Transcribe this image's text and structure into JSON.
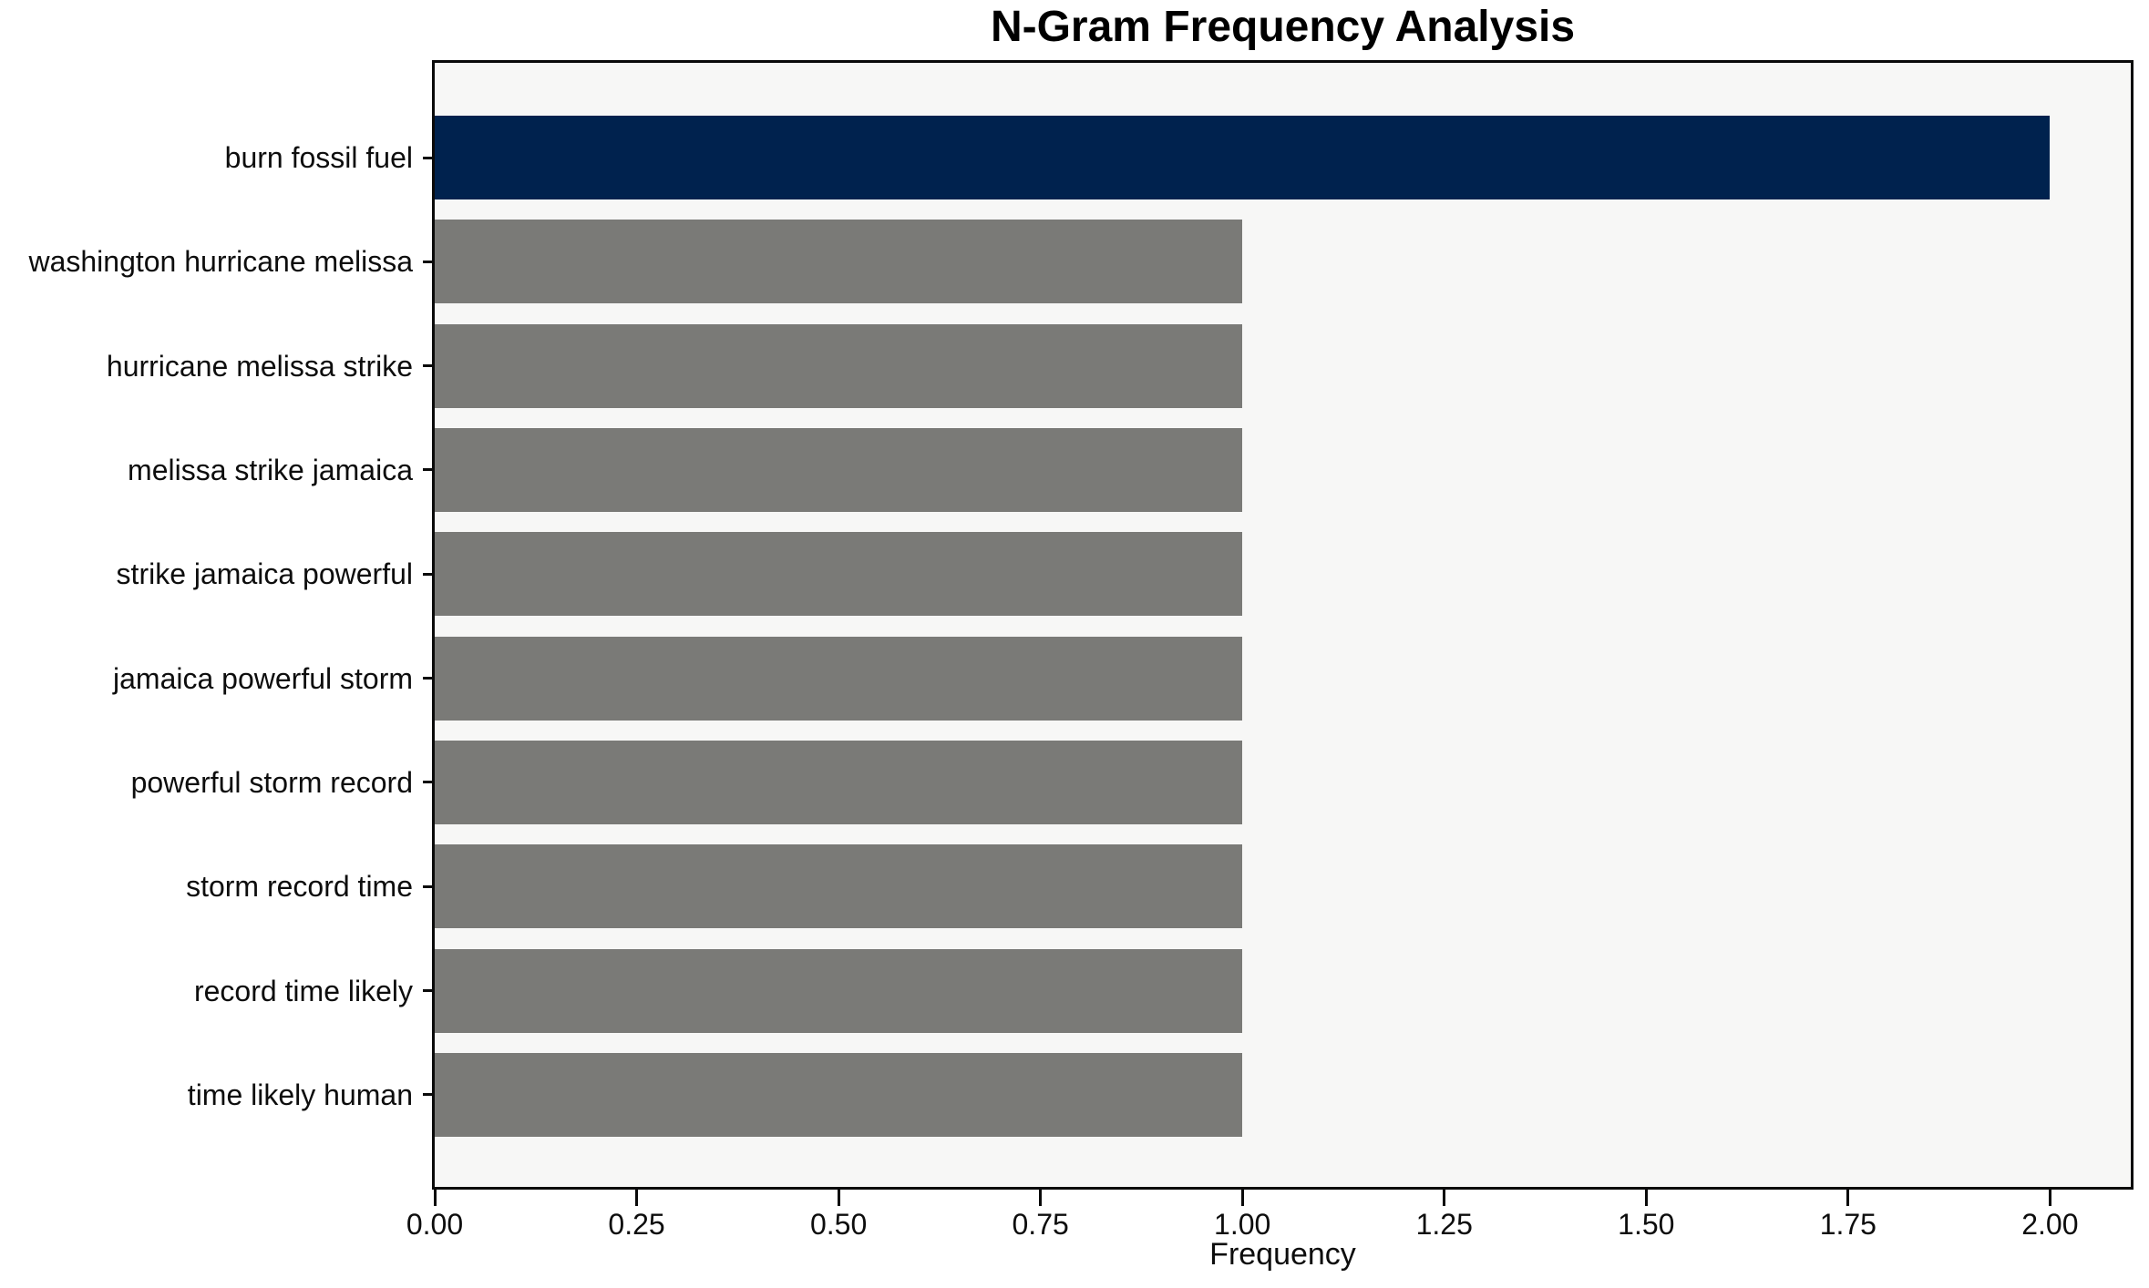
{
  "chart_data": {
    "type": "bar",
    "orientation": "horizontal",
    "title": "N-Gram Frequency Analysis",
    "xlabel": "Frequency",
    "ylabel": "",
    "categories": [
      "burn fossil fuel",
      "washington hurricane melissa",
      "hurricane melissa strike",
      "melissa strike jamaica",
      "strike jamaica powerful",
      "jamaica powerful storm",
      "powerful storm record",
      "storm record time",
      "record time likely",
      "time likely human"
    ],
    "values": [
      2,
      1,
      1,
      1,
      1,
      1,
      1,
      1,
      1,
      1
    ],
    "bar_colors": [
      "#00224E",
      "#7A7A77",
      "#7A7A77",
      "#7A7A77",
      "#7A7A77",
      "#7A7A77",
      "#7A7A77",
      "#7A7A77",
      "#7A7A77",
      "#7A7A77"
    ],
    "highlight_color": "#00224E",
    "base_color": "#7A7A77",
    "xlim": [
      0,
      2.1
    ],
    "x_ticks": [
      0,
      0.25,
      0.5,
      0.75,
      1,
      1.25,
      1.5,
      1.75,
      2
    ],
    "x_tick_labels": [
      "0.00",
      "0.25",
      "0.50",
      "0.75",
      "1.00",
      "1.25",
      "1.50",
      "1.75",
      "2.00"
    ],
    "grid": false,
    "legend": false,
    "plot_background": "#F7F7F6",
    "figure_background": "#FFFFFF",
    "spine_color": "#0A0A0A",
    "text_color": "#0D0D0D"
  }
}
